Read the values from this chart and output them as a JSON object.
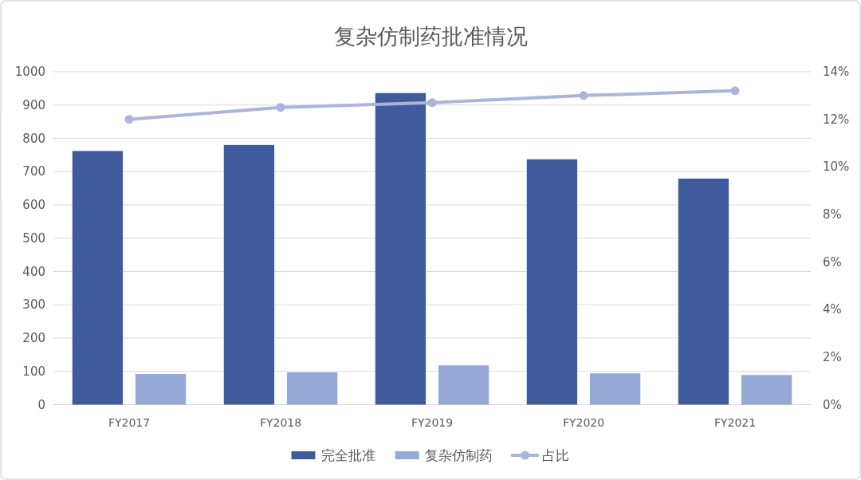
{
  "chart_data": {
    "type": "bar",
    "title": "复杂仿制药批准情况",
    "categories": [
      "FY2017",
      "FY2018",
      "FY2019",
      "FY2020",
      "FY2021"
    ],
    "series": [
      {
        "name": "完全批准",
        "color": "#3f5b9c",
        "values": [
          762,
          780,
          936,
          737,
          679
        ]
      },
      {
        "name": "复杂仿制药",
        "color": "#95a9d7",
        "values": [
          92,
          97,
          118,
          94,
          89
        ]
      },
      {
        "name": "占比",
        "type": "line",
        "axis": "y2",
        "color": "#a9b5da",
        "values": [
          12.0,
          12.5,
          12.7,
          13.0,
          13.2
        ]
      }
    ],
    "ylim": [
      0,
      1000
    ],
    "yticks": [
      0,
      100,
      200,
      300,
      400,
      500,
      600,
      700,
      800,
      900,
      1000
    ],
    "y2lim": [
      0,
      14
    ],
    "y2ticks": [
      {
        "value": 0,
        "label": "0%"
      },
      {
        "value": 2,
        "label": "2%"
      },
      {
        "value": 4,
        "label": "4%"
      },
      {
        "value": 6,
        "label": "6%"
      },
      {
        "value": 8,
        "label": "8%"
      },
      {
        "value": 10,
        "label": "10%"
      },
      {
        "value": 12,
        "label": "12%"
      },
      {
        "value": 14,
        "label": "14%"
      }
    ],
    "grid": "y",
    "legend": "bottom",
    "marker": "circle"
  }
}
